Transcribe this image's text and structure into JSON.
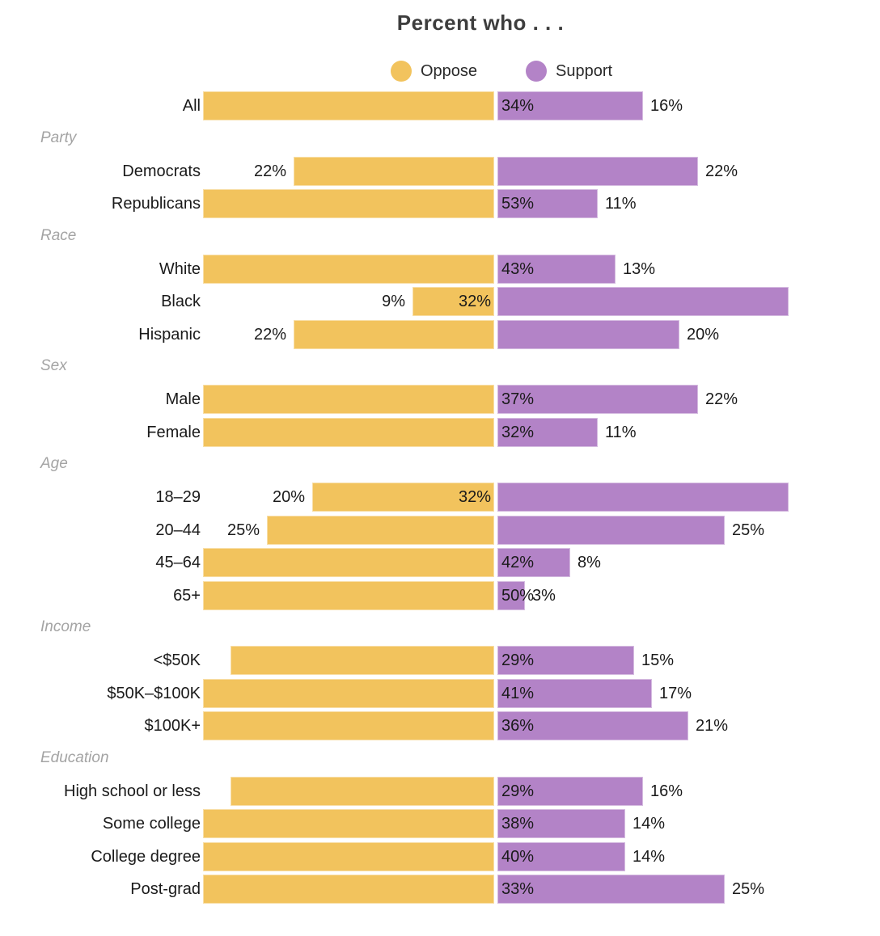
{
  "chart_data": {
    "type": "bar",
    "variant": "diverging-horizontal",
    "title": "Percent who . . .",
    "legend": [
      {
        "name": "Oppose",
        "color": "#F2C35D"
      },
      {
        "name": "Support",
        "color": "#B383C7"
      }
    ],
    "axis": {
      "unit": "%",
      "max_display_pct": 32,
      "center_axis": true,
      "grid": false
    },
    "colors": {
      "oppose_bar": "#F2C35D",
      "support_bar": "#B383C7",
      "title_text": "#3D3D3D",
      "label_text": "#1A1A1A",
      "section_text": "#A4A4A4"
    },
    "groups": [
      {
        "section": null,
        "rows": [
          {
            "label": "All",
            "oppose": 34,
            "support": 16,
            "oppose_label_pos": "inside",
            "support_label_pos": "right"
          }
        ]
      },
      {
        "section": "Party",
        "rows": [
          {
            "label": "Democrats",
            "oppose": 22,
            "support": 22,
            "oppose_label_pos": "left",
            "support_label_pos": "right"
          },
          {
            "label": "Republicans",
            "oppose": 53,
            "support": 11,
            "oppose_label_pos": "inside",
            "support_label_pos": "right"
          }
        ]
      },
      {
        "section": "Race",
        "rows": [
          {
            "label": "White",
            "oppose": 43,
            "support": 13,
            "oppose_label_pos": "inside",
            "support_label_pos": "right"
          },
          {
            "label": "Black",
            "oppose": 9,
            "support": 32,
            "oppose_label_pos": "left",
            "support_label_pos": "inside"
          },
          {
            "label": "Hispanic",
            "oppose": 22,
            "support": 20,
            "oppose_label_pos": "left",
            "support_label_pos": "right"
          }
        ]
      },
      {
        "section": "Sex",
        "rows": [
          {
            "label": "Male",
            "oppose": 37,
            "support": 22,
            "oppose_label_pos": "inside",
            "support_label_pos": "right"
          },
          {
            "label": "Female",
            "oppose": 32,
            "support": 11,
            "oppose_label_pos": "inside",
            "support_label_pos": "right"
          }
        ]
      },
      {
        "section": "Age",
        "rows": [
          {
            "label": "18–29",
            "oppose": 20,
            "support": 32,
            "oppose_label_pos": "left",
            "support_label_pos": "inside"
          },
          {
            "label": "20–44",
            "oppose": 25,
            "support": 25,
            "oppose_label_pos": "left",
            "support_label_pos": "right"
          },
          {
            "label": "45–64",
            "oppose": 42,
            "support": 8,
            "oppose_label_pos": "inside",
            "support_label_pos": "right"
          },
          {
            "label": "65+",
            "oppose": 50,
            "support": 3,
            "oppose_label_pos": "inside",
            "support_label_pos": "right"
          }
        ]
      },
      {
        "section": "Income",
        "rows": [
          {
            "label": "<$50K",
            "oppose": 29,
            "support": 15,
            "oppose_label_pos": "inside",
            "support_label_pos": "right"
          },
          {
            "label": "$50K–$100K",
            "oppose": 41,
            "support": 17,
            "oppose_label_pos": "inside",
            "support_label_pos": "right"
          },
          {
            "label": "$100K+",
            "oppose": 36,
            "support": 21,
            "oppose_label_pos": "inside",
            "support_label_pos": "right"
          }
        ]
      },
      {
        "section": "Education",
        "rows": [
          {
            "label": "High school or less",
            "oppose": 29,
            "support": 16,
            "oppose_label_pos": "inside",
            "support_label_pos": "right"
          },
          {
            "label": "Some college",
            "oppose": 38,
            "support": 14,
            "oppose_label_pos": "inside",
            "support_label_pos": "right"
          },
          {
            "label": "College degree",
            "oppose": 40,
            "support": 14,
            "oppose_label_pos": "inside",
            "support_label_pos": "right"
          },
          {
            "label": "Post-grad",
            "oppose": 33,
            "support": 25,
            "oppose_label_pos": "inside",
            "support_label_pos": "right"
          }
        ]
      }
    ]
  }
}
